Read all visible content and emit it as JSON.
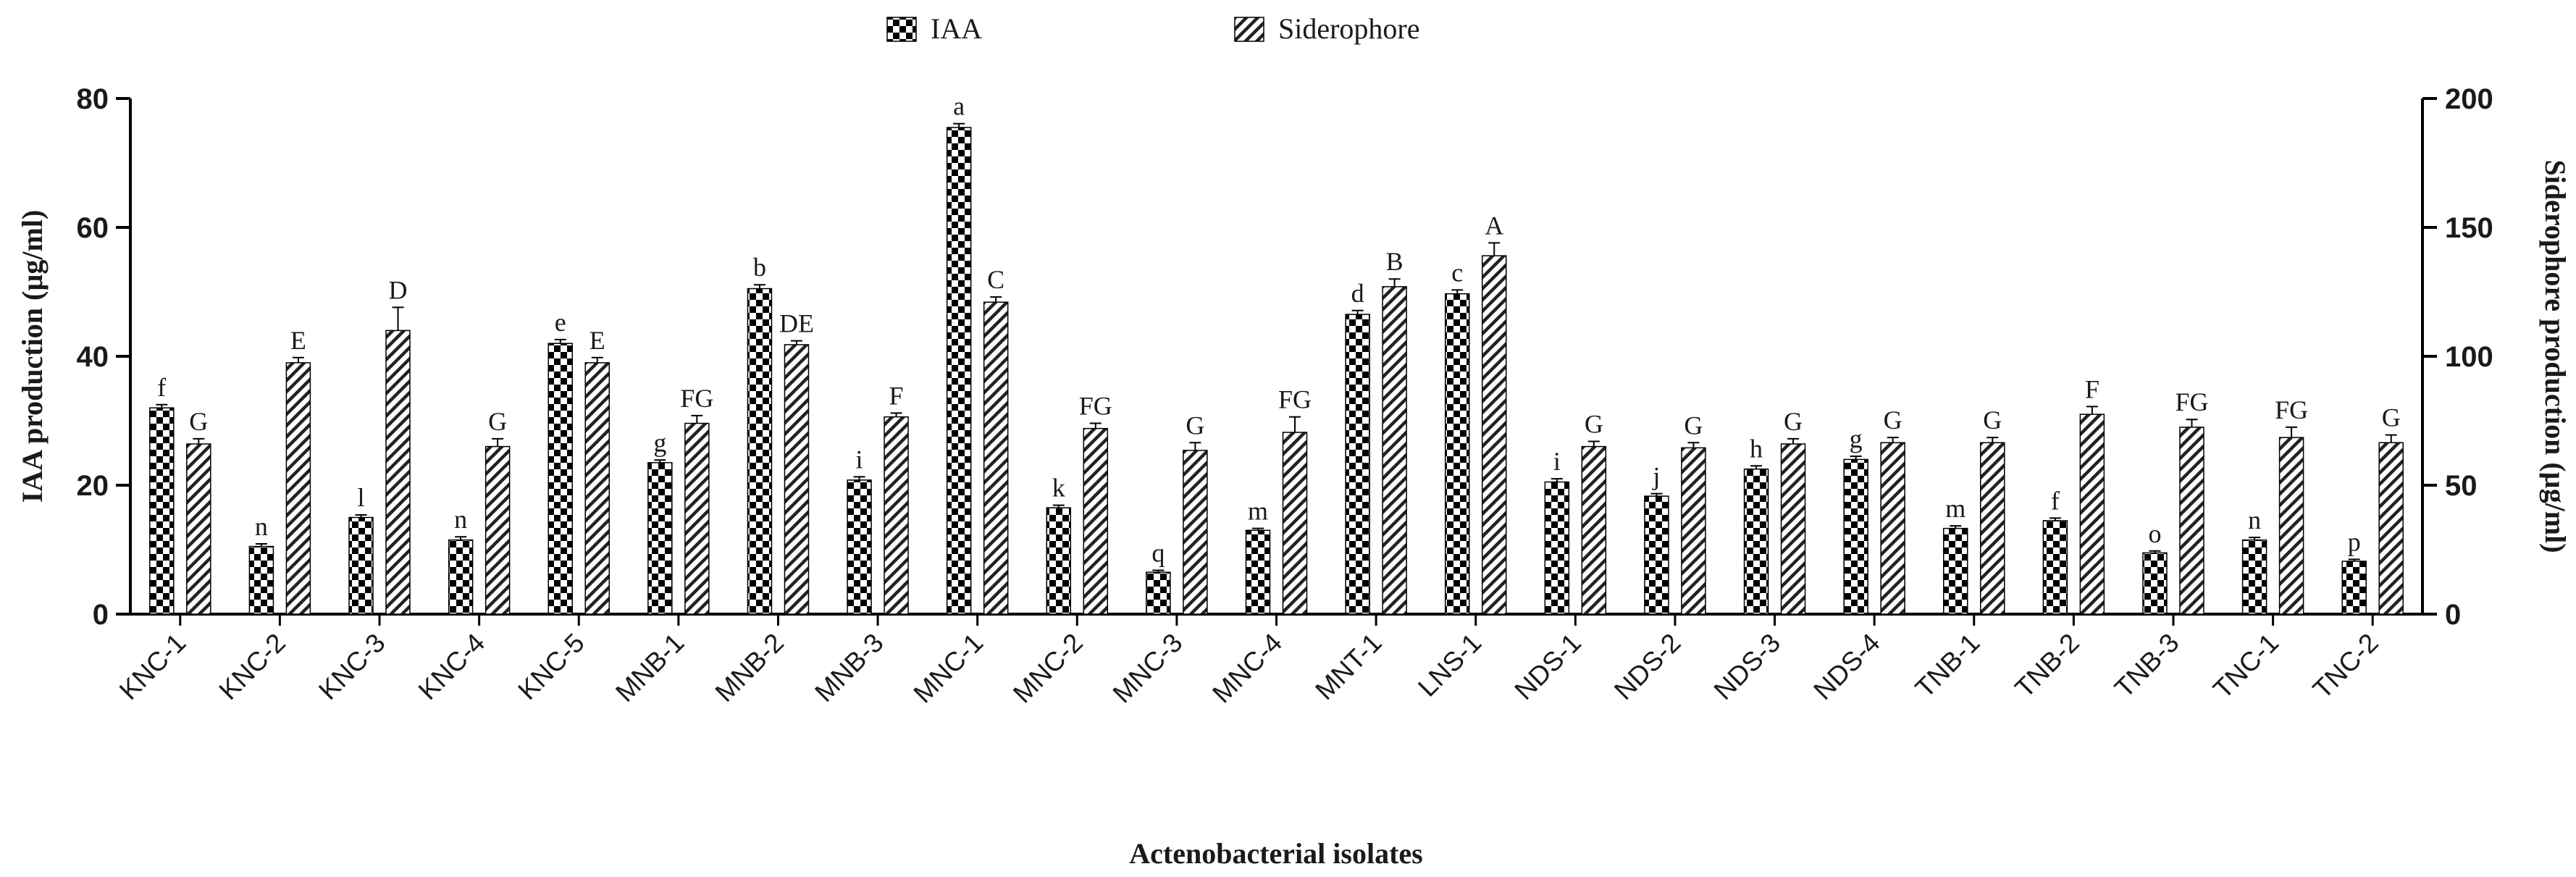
{
  "chart_data": {
    "type": "bar",
    "title": "",
    "xlabel": "Actenobacterial isolates",
    "ylabel": "IAA production (µg/ml)",
    "y2label": "Siderophore production (µg/ml)",
    "ylim": [
      0,
      80
    ],
    "y2lim": [
      0,
      200
    ],
    "yticks": [
      "0",
      "20",
      "40",
      "60",
      "80"
    ],
    "y2ticks": [
      "0",
      "50",
      "100",
      "150",
      "200"
    ],
    "legend_position": "top",
    "categories": [
      "KNC-1",
      "KNC-2",
      "KNC-3",
      "KNC-4",
      "KNC-5",
      "MNB-1",
      "MNB-2",
      "MNB-3",
      "MNC-1",
      "MNC-2",
      "MNC-3",
      "MNC-4",
      "MNT-1",
      "LNS-1",
      "NDS-1",
      "NDS-2",
      "NDS-3",
      "NDS-4",
      "TNB-1",
      "TNB-2",
      "TNB-3",
      "TNC-1",
      "TNC-2"
    ],
    "series": [
      {
        "name": "IAA",
        "axis": "left",
        "pattern": "checker",
        "values": [
          32,
          10.5,
          15,
          11.5,
          42,
          23.5,
          50.5,
          20.8,
          75.5,
          16.5,
          6.5,
          13,
          46.5,
          49.7,
          20.5,
          18.3,
          22.5,
          24,
          13.3,
          14.5,
          9.5,
          11.5,
          8.2
        ],
        "errors": [
          0.5,
          0.4,
          0.4,
          0.5,
          0.6,
          0.4,
          0.6,
          0.5,
          0.6,
          0.4,
          0.3,
          0.3,
          0.6,
          0.6,
          0.5,
          0.4,
          0.5,
          0.5,
          0.4,
          0.4,
          0.3,
          0.4,
          0.3
        ],
        "labels": [
          "f",
          "n",
          "l",
          "n",
          "e",
          "g",
          "b",
          "i",
          "a",
          "k",
          "q",
          "m",
          "d",
          "c",
          "i",
          "j",
          "h",
          "g",
          "m",
          "f",
          "o",
          "n",
          "p"
        ]
      },
      {
        "name": "Siderophore",
        "axis": "right",
        "pattern": "hatch",
        "values": [
          66,
          97.5,
          110,
          65,
          97.5,
          74,
          104.5,
          76.5,
          121,
          72,
          63.5,
          70.5,
          127,
          139,
          65,
          64.5,
          66,
          66.5,
          66.5,
          77.5,
          72.5,
          68.5,
          66.5
        ],
        "errors": [
          2,
          2,
          9,
          3,
          2,
          3,
          1.5,
          1.5,
          2,
          2,
          3,
          6,
          3,
          5,
          2,
          2,
          2,
          2,
          2,
          3,
          3,
          4,
          3
        ],
        "labels": [
          "G",
          "E",
          "D",
          "G",
          "E",
          "FG",
          "DE",
          "F",
          "C",
          "FG",
          "G",
          "FG",
          "B",
          "A",
          "G",
          "G",
          "G",
          "G",
          "G",
          "F",
          "FG",
          "FG",
          "G"
        ]
      }
    ]
  }
}
